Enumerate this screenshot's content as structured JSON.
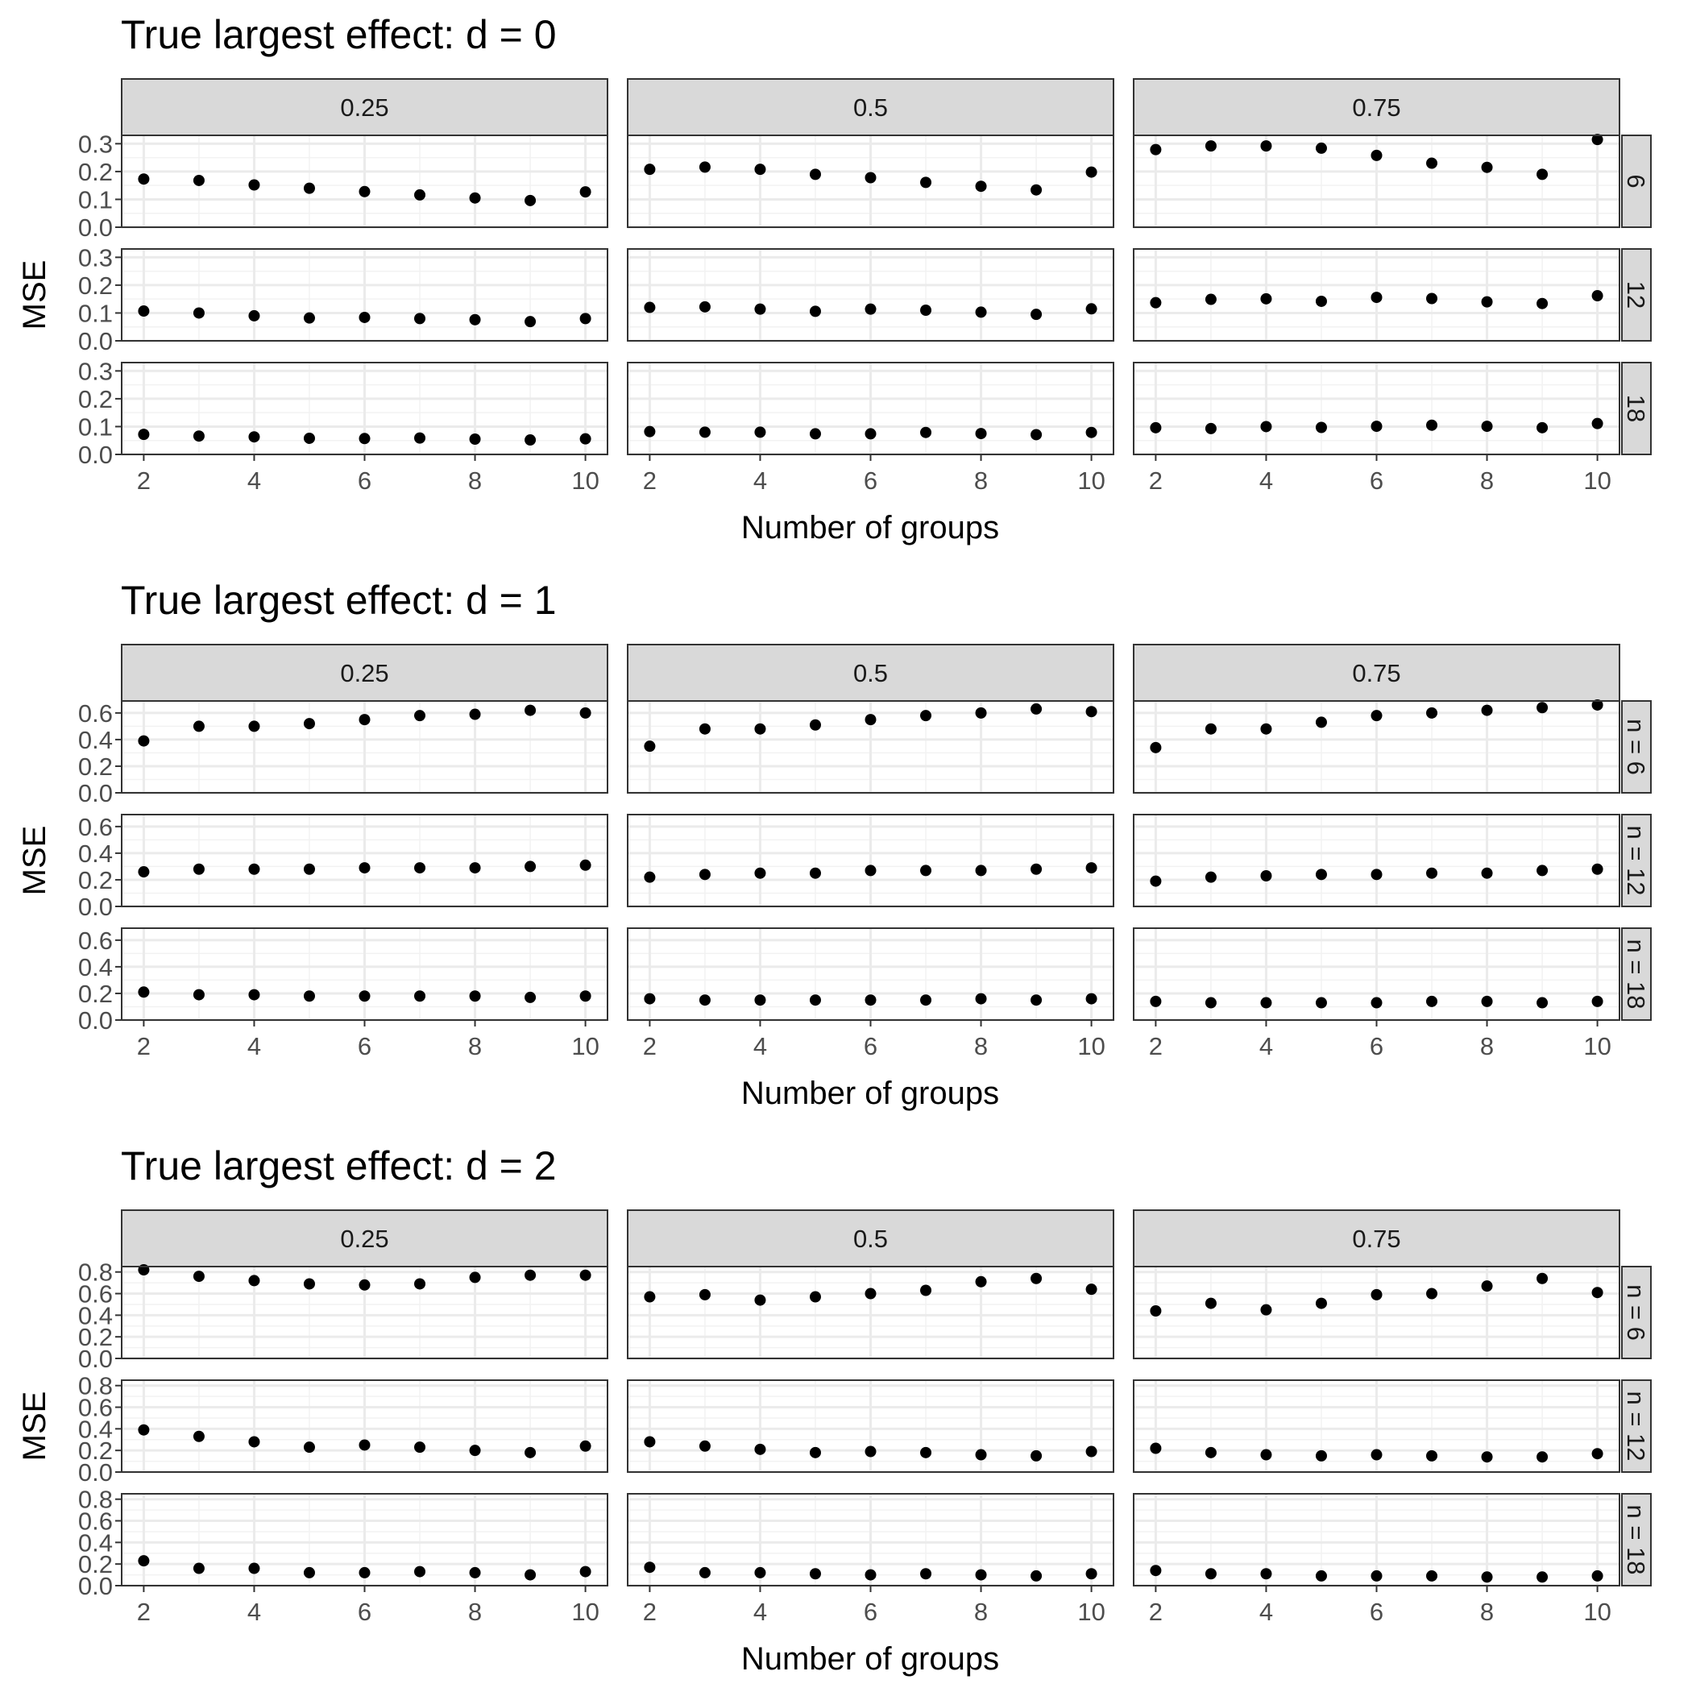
{
  "chart_data": [
    {
      "type": "scatter",
      "title": "True largest effect: d = 0",
      "xlabel": "Number of groups",
      "ylabel": "MSE",
      "x": [
        2,
        3,
        4,
        5,
        6,
        7,
        8,
        9,
        10
      ],
      "x_ticks": [
        "2",
        "4",
        "6",
        "8",
        "10"
      ],
      "ylim": [
        0,
        0.33
      ],
      "y_ticks": [
        "0.0",
        "0.1",
        "0.2",
        "0.3"
      ],
      "columns": [
        "0.25",
        "0.5",
        "0.75"
      ],
      "rows": [
        "6",
        "12",
        "18"
      ],
      "grid": true,
      "series": [
        [
          [
            0.173,
            0.168,
            0.152,
            0.14,
            0.128,
            0.116,
            0.105,
            0.096,
            0.127
          ],
          [
            0.208,
            0.216,
            0.208,
            0.19,
            0.178,
            0.161,
            0.147,
            0.134,
            0.198
          ],
          [
            0.279,
            0.292,
            0.292,
            0.284,
            0.258,
            0.23,
            0.215,
            0.19,
            0.315
          ]
        ],
        [
          [
            0.107,
            0.1,
            0.09,
            0.082,
            0.084,
            0.08,
            0.076,
            0.069,
            0.08
          ],
          [
            0.12,
            0.122,
            0.114,
            0.106,
            0.114,
            0.11,
            0.103,
            0.095,
            0.115
          ],
          [
            0.137,
            0.149,
            0.151,
            0.142,
            0.156,
            0.152,
            0.14,
            0.134,
            0.162
          ]
        ],
        [
          [
            0.072,
            0.066,
            0.063,
            0.058,
            0.057,
            0.059,
            0.055,
            0.052,
            0.056
          ],
          [
            0.082,
            0.08,
            0.08,
            0.074,
            0.074,
            0.079,
            0.075,
            0.071,
            0.079
          ],
          [
            0.096,
            0.093,
            0.1,
            0.097,
            0.101,
            0.105,
            0.101,
            0.096,
            0.111
          ]
        ]
      ]
    },
    {
      "type": "scatter",
      "title": "True largest effect: d = 1",
      "xlabel": "Number of groups",
      "ylabel": "MSE",
      "x": [
        2,
        3,
        4,
        5,
        6,
        7,
        8,
        9,
        10
      ],
      "x_ticks": [
        "2",
        "4",
        "6",
        "8",
        "10"
      ],
      "ylim": [
        0,
        0.69
      ],
      "y_ticks": [
        "0.0",
        "0.2",
        "0.4",
        "0.6"
      ],
      "columns": [
        "0.25",
        "0.5",
        "0.75"
      ],
      "rows": [
        "n = 6",
        "n = 12",
        "n = 18"
      ],
      "grid": true,
      "series": [
        [
          [
            0.39,
            0.5,
            0.5,
            0.52,
            0.55,
            0.58,
            0.59,
            0.62,
            0.6
          ],
          [
            0.35,
            0.48,
            0.48,
            0.51,
            0.55,
            0.58,
            0.6,
            0.63,
            0.61
          ],
          [
            0.34,
            0.48,
            0.48,
            0.53,
            0.58,
            0.6,
            0.62,
            0.64,
            0.66
          ]
        ],
        [
          [
            0.26,
            0.28,
            0.28,
            0.28,
            0.29,
            0.29,
            0.29,
            0.3,
            0.31
          ],
          [
            0.22,
            0.24,
            0.25,
            0.25,
            0.27,
            0.27,
            0.27,
            0.28,
            0.29
          ],
          [
            0.19,
            0.22,
            0.23,
            0.24,
            0.24,
            0.25,
            0.25,
            0.27,
            0.28
          ]
        ],
        [
          [
            0.21,
            0.19,
            0.19,
            0.18,
            0.18,
            0.18,
            0.18,
            0.17,
            0.18
          ],
          [
            0.16,
            0.15,
            0.15,
            0.15,
            0.15,
            0.15,
            0.16,
            0.15,
            0.16
          ],
          [
            0.14,
            0.13,
            0.13,
            0.13,
            0.13,
            0.14,
            0.14,
            0.13,
            0.14
          ]
        ]
      ]
    },
    {
      "type": "scatter",
      "title": "True largest effect: d = 2",
      "xlabel": "Number of groups",
      "ylabel": "MSE",
      "x": [
        2,
        3,
        4,
        5,
        6,
        7,
        8,
        9,
        10
      ],
      "x_ticks": [
        "2",
        "4",
        "6",
        "8",
        "10"
      ],
      "ylim": [
        0,
        0.85
      ],
      "y_ticks": [
        "0.0",
        "0.2",
        "0.4",
        "0.6",
        "0.8"
      ],
      "columns": [
        "0.25",
        "0.5",
        "0.75"
      ],
      "rows": [
        "n = 6",
        "n = 12",
        "n = 18"
      ],
      "grid": true,
      "series": [
        [
          [
            0.82,
            0.76,
            0.72,
            0.69,
            0.68,
            0.69,
            0.75,
            0.77,
            0.77
          ],
          [
            0.57,
            0.59,
            0.54,
            0.57,
            0.6,
            0.63,
            0.71,
            0.74,
            0.64
          ],
          [
            0.44,
            0.51,
            0.45,
            0.51,
            0.59,
            0.6,
            0.67,
            0.74,
            0.61
          ]
        ],
        [
          [
            0.39,
            0.33,
            0.28,
            0.23,
            0.25,
            0.23,
            0.2,
            0.18,
            0.24
          ],
          [
            0.28,
            0.24,
            0.21,
            0.18,
            0.19,
            0.18,
            0.16,
            0.15,
            0.19
          ],
          [
            0.22,
            0.18,
            0.16,
            0.15,
            0.16,
            0.15,
            0.14,
            0.14,
            0.17
          ]
        ],
        [
          [
            0.23,
            0.16,
            0.16,
            0.12,
            0.12,
            0.13,
            0.12,
            0.1,
            0.13
          ],
          [
            0.17,
            0.12,
            0.12,
            0.11,
            0.1,
            0.11,
            0.1,
            0.09,
            0.11
          ],
          [
            0.14,
            0.11,
            0.11,
            0.09,
            0.09,
            0.09,
            0.08,
            0.08,
            0.09
          ]
        ]
      ]
    }
  ]
}
